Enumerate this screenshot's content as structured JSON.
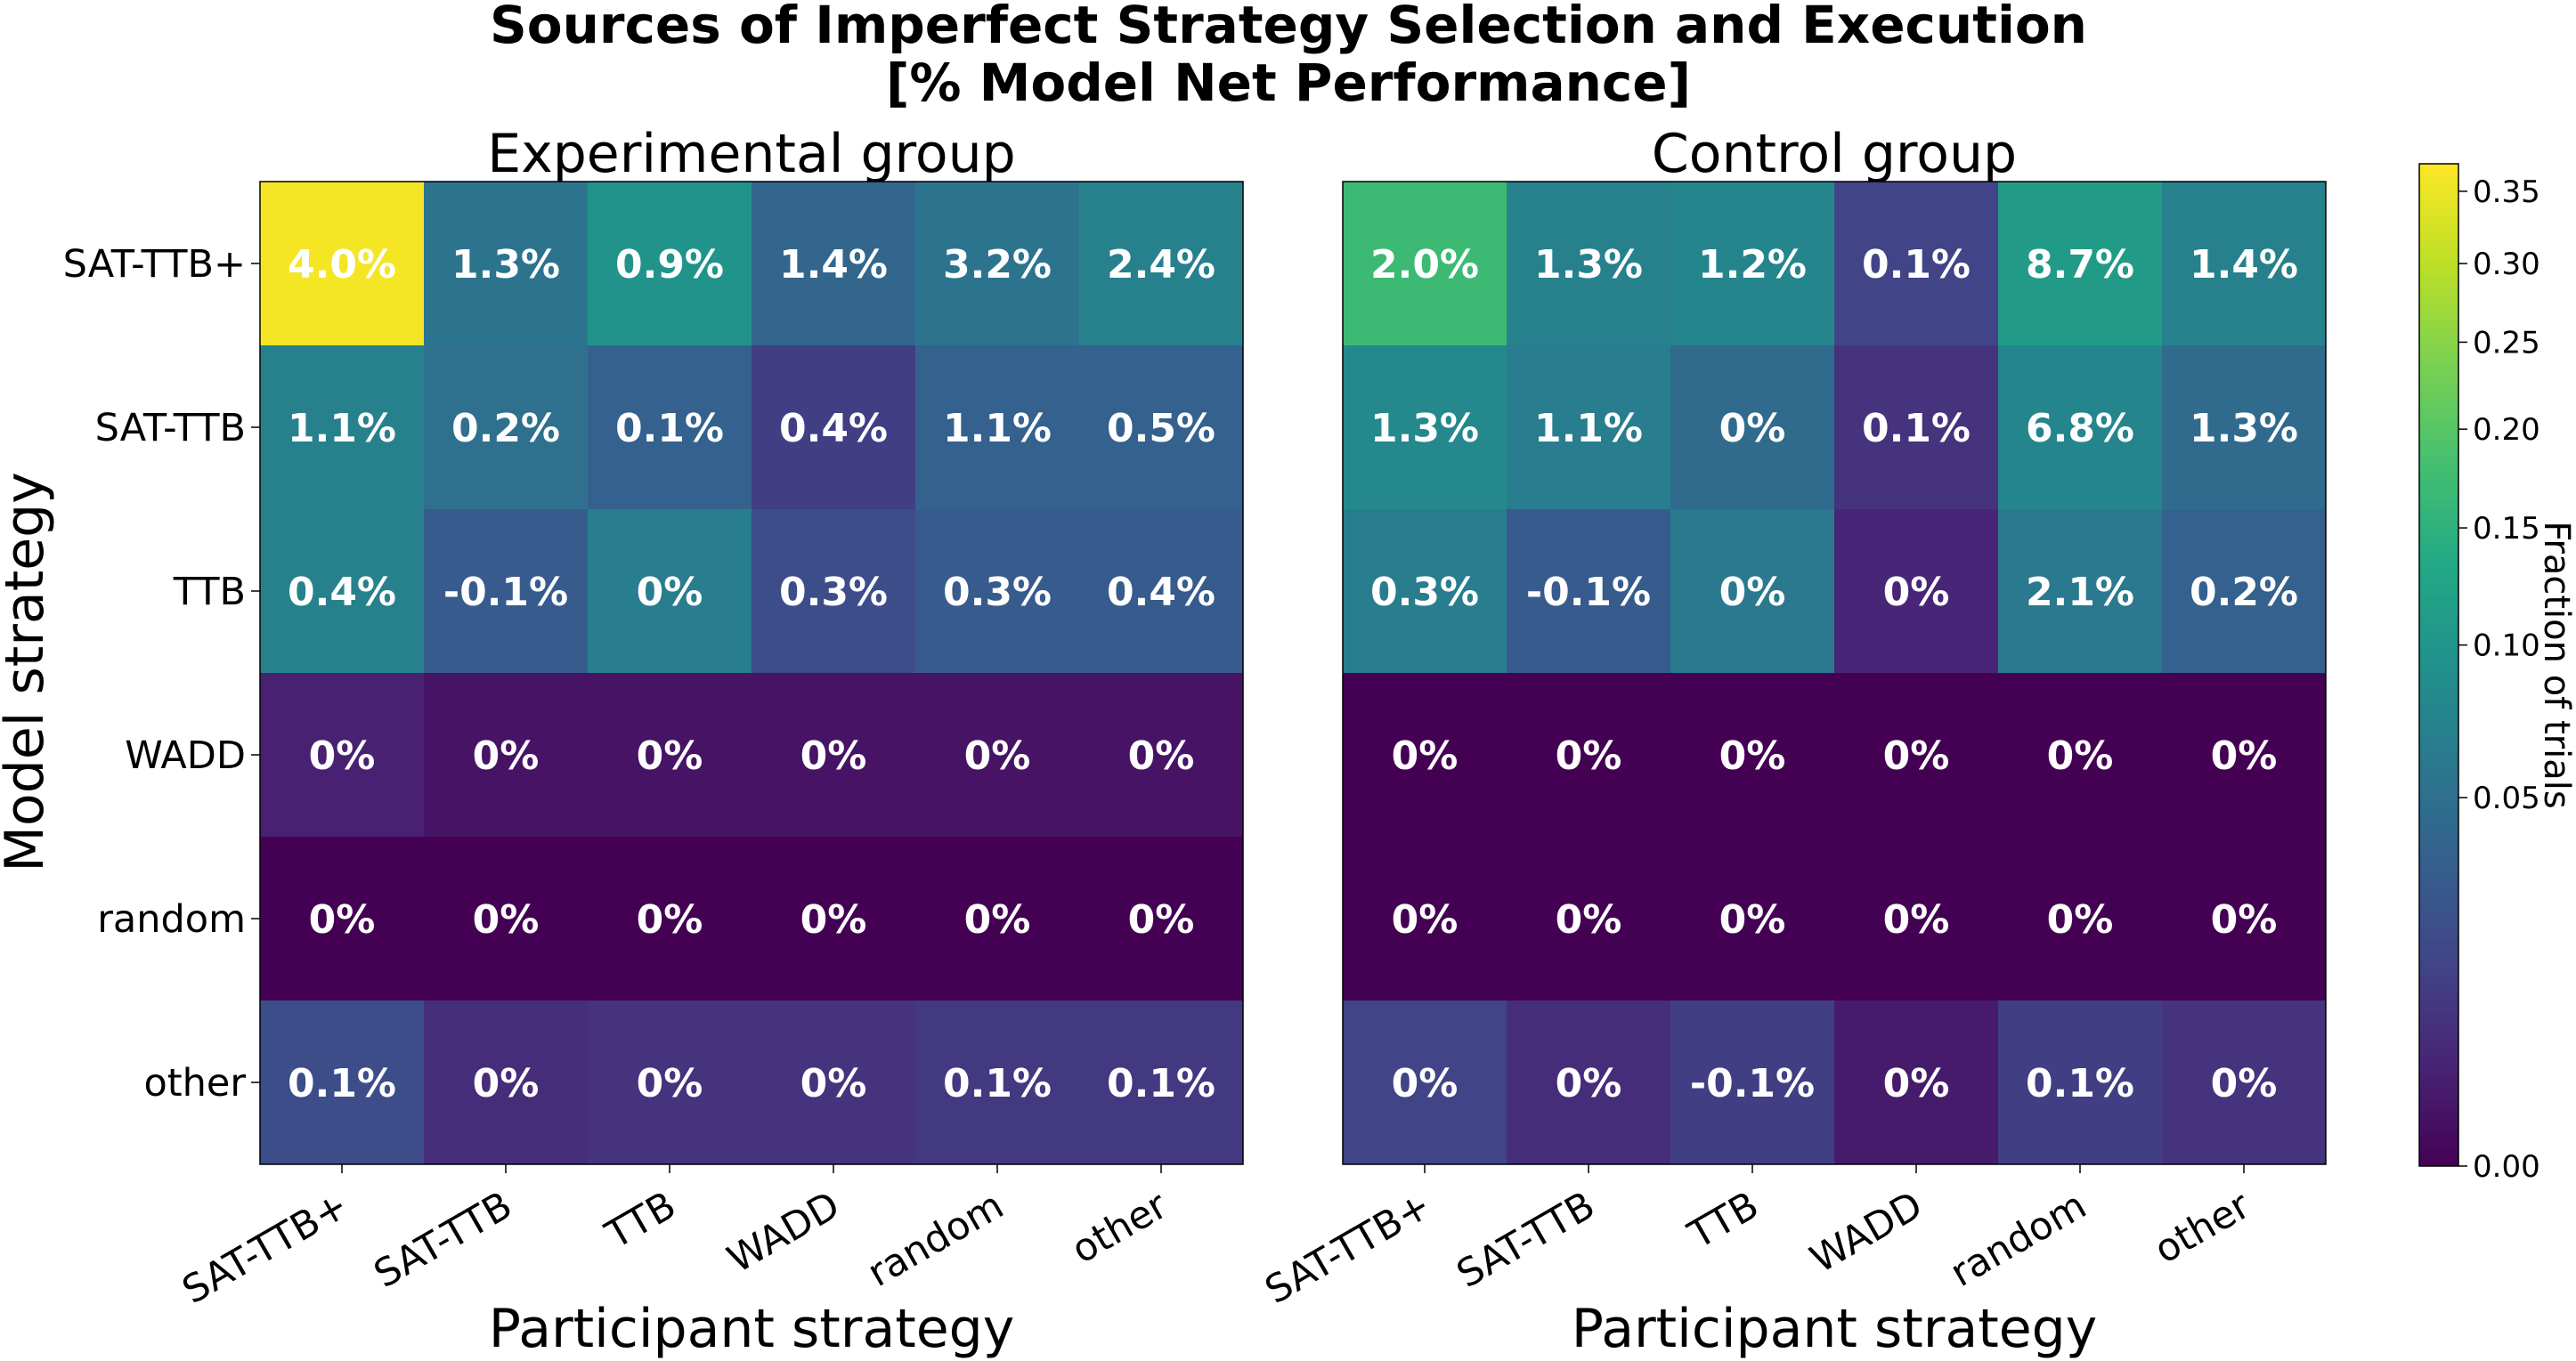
{
  "chart_data": {
    "type": "heatmap",
    "title": "Sources of Imperfect Strategy Selection and Execution",
    "subtitle": "[% Model Net Performance]",
    "ylabel": "Model strategy",
    "rows": [
      "SAT-TTB+",
      "SAT-TTB",
      "TTB",
      "WADD",
      "random",
      "other"
    ],
    "columns": [
      "SAT-TTB+",
      "SAT-TTB",
      "TTB",
      "WADD",
      "random",
      "other"
    ],
    "colormap": "viridis",
    "colorbar": {
      "label": "Fraction of trials",
      "scale": "sqrt",
      "range": [
        0,
        0.37
      ],
      "ticks": [
        0.0,
        0.05,
        0.1,
        0.15,
        0.2,
        0.25,
        0.3,
        0.35
      ],
      "tick_labels": [
        "0.00",
        "0.05",
        "0.10",
        "0.15",
        "0.20",
        "0.25",
        "0.30",
        "0.35"
      ]
    },
    "panels": [
      {
        "title": "Experimental group",
        "xlabel": "Participant strategy",
        "fractions": [
          [
            0.36,
            0.055,
            0.095,
            0.04,
            0.055,
            0.07
          ],
          [
            0.07,
            0.05,
            0.035,
            0.012,
            0.035,
            0.035
          ],
          [
            0.07,
            0.03,
            0.065,
            0.02,
            0.03,
            0.03
          ],
          [
            0.003,
            0.001,
            0.001,
            0.001,
            0.001,
            0.001
          ],
          [
            0.0,
            0.0,
            0.0,
            0.0,
            0.0,
            0.0
          ],
          [
            0.02,
            0.006,
            0.008,
            0.008,
            0.01,
            0.01
          ]
        ],
        "labels": [
          [
            "4.0%",
            "1.3%",
            "0.9%",
            "1.4%",
            "3.2%",
            "2.4%"
          ],
          [
            "1.1%",
            "0.2%",
            "0.1%",
            "0.4%",
            "1.1%",
            "0.5%"
          ],
          [
            "0.4%",
            "-0.1%",
            "0%",
            "0.3%",
            "0.3%",
            "0.4%"
          ],
          [
            "0%",
            "0%",
            "0%",
            "0%",
            "0%",
            "0%"
          ],
          [
            "0%",
            "0%",
            "0%",
            "0%",
            "0%",
            "0%"
          ],
          [
            "0.1%",
            "0%",
            "0%",
            "0%",
            "0.1%",
            "0.1%"
          ]
        ]
      },
      {
        "title": "Control group",
        "xlabel": "Participant strategy",
        "fractions": [
          [
            0.17,
            0.07,
            0.075,
            0.015,
            0.11,
            0.07
          ],
          [
            0.08,
            0.065,
            0.045,
            0.008,
            0.075,
            0.045
          ],
          [
            0.065,
            0.03,
            0.06,
            0.004,
            0.06,
            0.035
          ],
          [
            0.0,
            0.0,
            0.0,
            0.0,
            0.0,
            0.0
          ],
          [
            0.0,
            0.0,
            0.0,
            0.0,
            0.0,
            0.0
          ],
          [
            0.015,
            0.006,
            0.012,
            0.002,
            0.012,
            0.008
          ]
        ],
        "labels": [
          [
            "2.0%",
            "1.3%",
            "1.2%",
            "0.1%",
            "8.7%",
            "1.4%"
          ],
          [
            "1.3%",
            "1.1%",
            "0%",
            "0.1%",
            "6.8%",
            "1.3%"
          ],
          [
            "0.3%",
            "-0.1%",
            "0%",
            "0%",
            "2.1%",
            "0.2%"
          ],
          [
            "0%",
            "0%",
            "0%",
            "0%",
            "0%",
            "0%"
          ],
          [
            "0%",
            "0%",
            "0%",
            "0%",
            "0%",
            "0%"
          ],
          [
            "0%",
            "0%",
            "-0.1%",
            "0%",
            "0.1%",
            "0%"
          ]
        ]
      }
    ]
  }
}
